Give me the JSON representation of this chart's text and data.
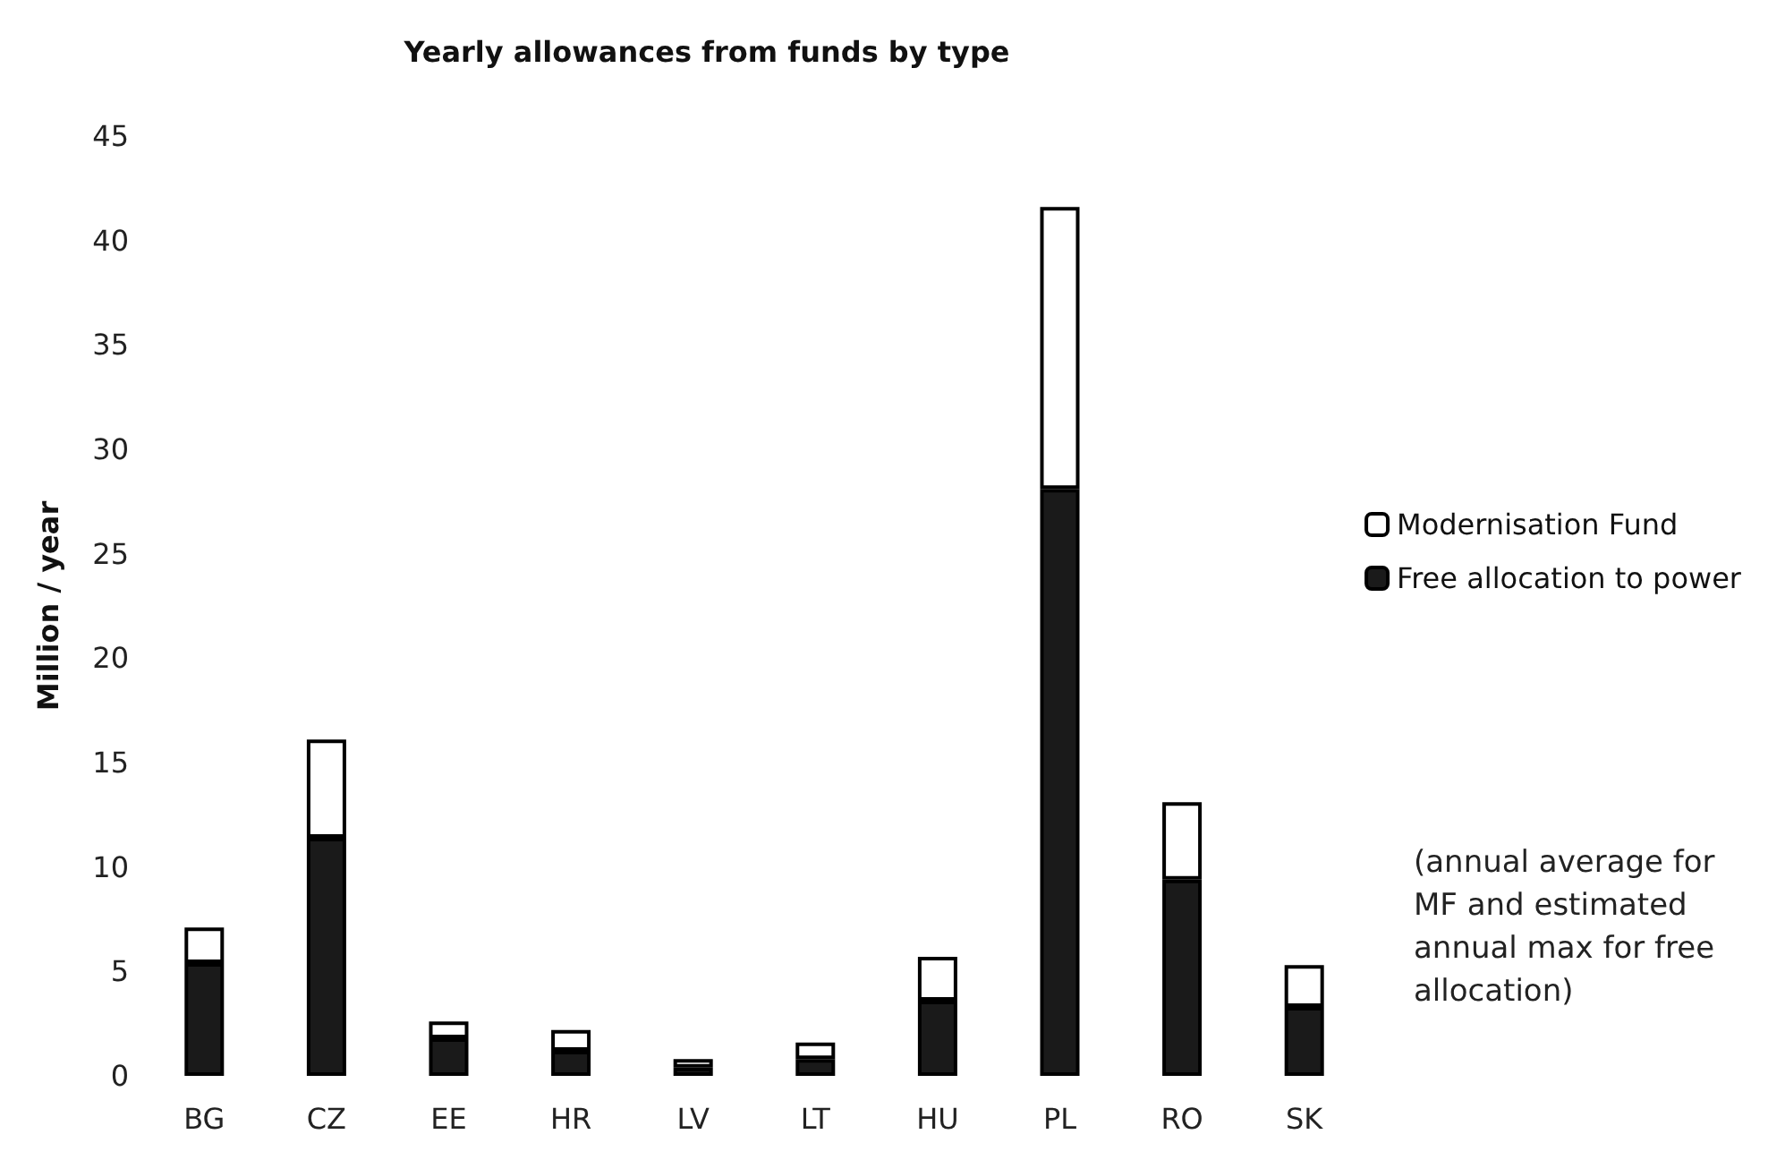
{
  "chart_data": {
    "type": "bar",
    "title": "Yearly allowances from funds by type",
    "ylabel": "Million / year",
    "categories": [
      "BG",
      "CZ",
      "EE",
      "HR",
      "LV",
      "LT",
      "HU",
      "PL",
      "RO",
      "SK"
    ],
    "series": [
      {
        "name": "Free allocation to power",
        "color": "#1a1a1a",
        "values": [
          5.4,
          11.4,
          1.8,
          1.2,
          0.4,
          0.8,
          3.6,
          28.1,
          9.4,
          3.3
        ]
      },
      {
        "name": "Modernisation Fund",
        "color": "#ffffff",
        "values": [
          1.7,
          4.7,
          0.8,
          1.0,
          0.4,
          0.8,
          2.1,
          13.5,
          3.7,
          2.0
        ]
      }
    ],
    "stacked": true,
    "ylim": [
      0,
      45
    ],
    "yticks": [
      0,
      5,
      10,
      15,
      20,
      25,
      30,
      35,
      40,
      45
    ],
    "grid": false,
    "legend": "right",
    "annotations": [
      "(annual average for MF and estimated annual max for free allocation)"
    ]
  }
}
